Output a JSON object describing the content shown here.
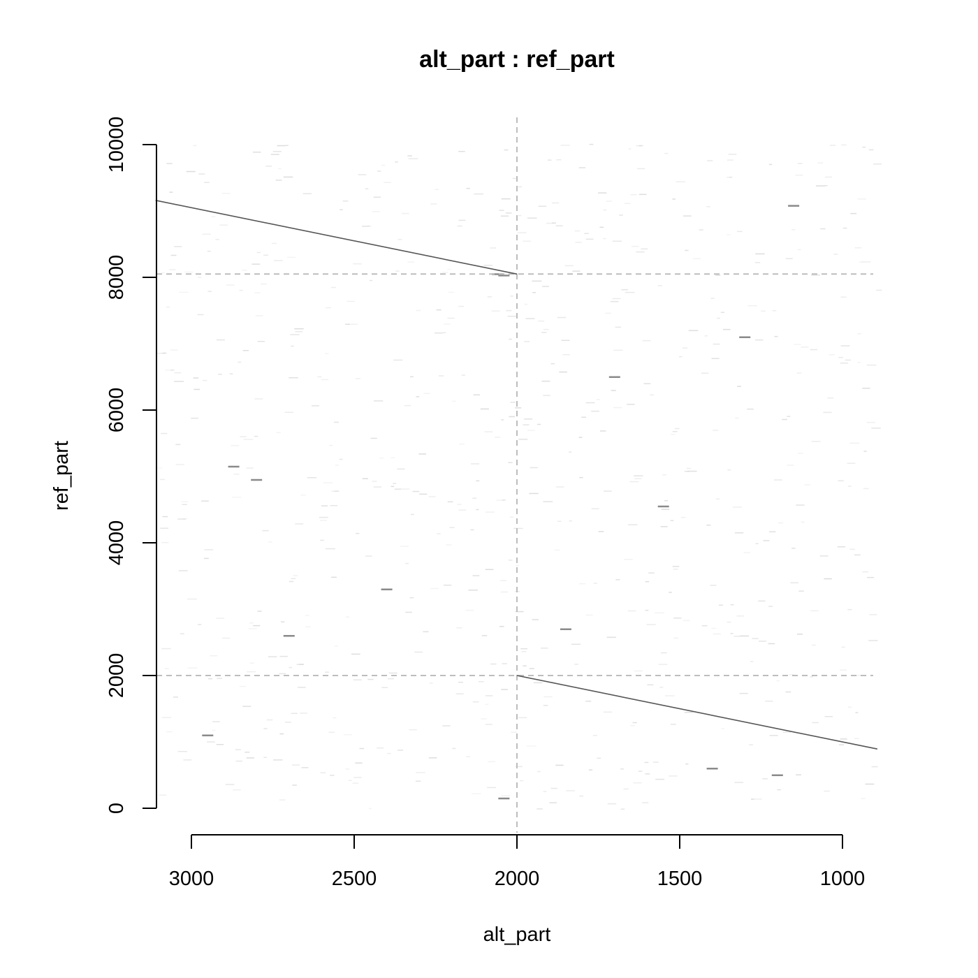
{
  "chart_data": {
    "type": "dotplot",
    "title": "alt_part : ref_part",
    "xlabel": "alt_part",
    "ylabel": "ref_part",
    "xlim": [
      3110,
      893
    ],
    "ylim": [
      0,
      10000
    ],
    "x_ticks": [
      3000,
      2500,
      2000,
      1500,
      1000
    ],
    "y_ticks": [
      0,
      2000,
      4000,
      6000,
      8000,
      10000
    ],
    "guides": {
      "vertical": [
        2000
      ],
      "horizontal": [
        2000,
        8050
      ]
    },
    "series": [
      {
        "type": "line",
        "points": [
          [
            3110,
            9160
          ],
          [
            2000,
            8050
          ]
        ]
      },
      {
        "type": "line",
        "points": [
          [
            2000,
            2000
          ],
          [
            893,
            893
          ]
        ]
      }
    ],
    "noise_marks": [
      [
        2040,
        8030
      ],
      [
        2060,
        8050
      ],
      [
        2040,
        150
      ],
      [
        2870,
        5150
      ],
      [
        2800,
        4950
      ],
      [
        2950,
        1100
      ],
      [
        1550,
        4550
      ],
      [
        1150,
        9080
      ],
      [
        1400,
        600
      ],
      [
        1850,
        2700
      ],
      [
        1200,
        500
      ],
      [
        2400,
        3300
      ],
      [
        2700,
        2600
      ],
      [
        1700,
        6500
      ],
      [
        1300,
        7100
      ]
    ]
  }
}
